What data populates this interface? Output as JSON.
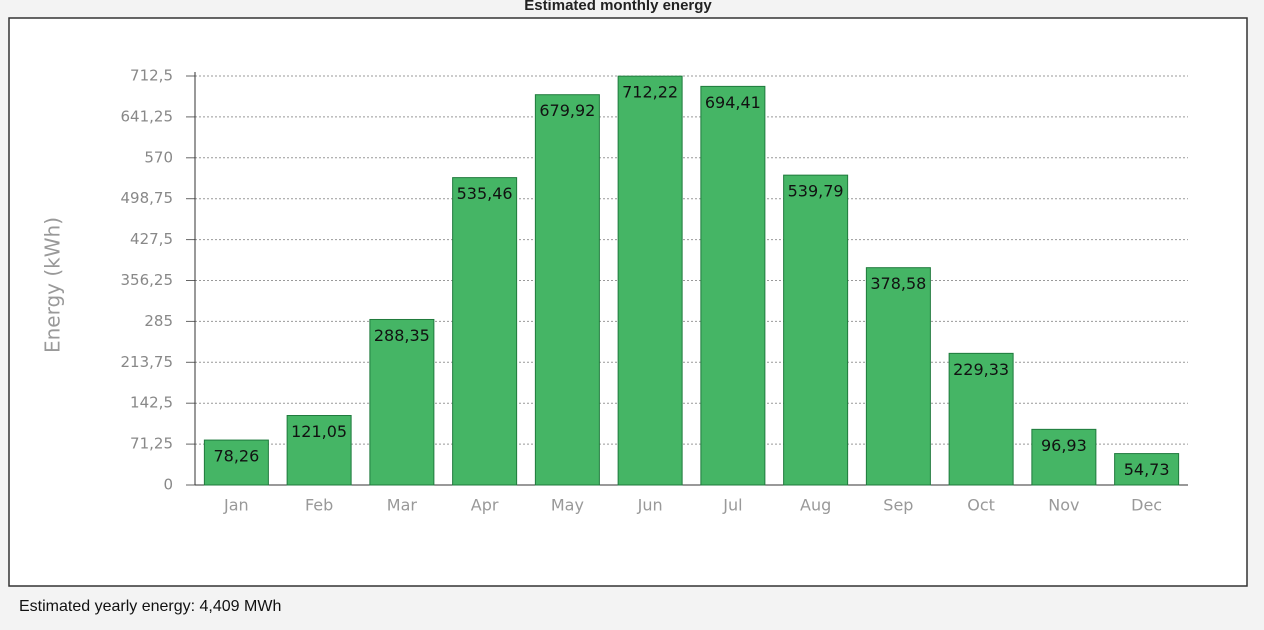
{
  "chart_data": {
    "type": "bar",
    "title": "Estimated monthly energy",
    "y_label": "Energy (kWh)",
    "categories": [
      "Jan",
      "Feb",
      "Mar",
      "Apr",
      "May",
      "Jun",
      "Jul",
      "Aug",
      "Sep",
      "Oct",
      "Nov",
      "Dec"
    ],
    "values": [
      78.26,
      121.05,
      288.35,
      535.46,
      679.92,
      712.22,
      694.41,
      539.79,
      378.58,
      229.33,
      96.93,
      54.73
    ],
    "value_labels": [
      "78,26",
      "121,05",
      "288,35",
      "535,46",
      "679,92",
      "712,22",
      "694,41",
      "539,79",
      "378,58",
      "229,33",
      "96,93",
      "54,73"
    ],
    "color": "#45b565",
    "ylim": [
      0,
      712.5
    ],
    "yticks": [
      0,
      {
        "value": 71.25,
        "label": "71,25"
      },
      {
        "value": 142.5,
        "label": "142,5"
      },
      {
        "value": 213.75,
        "label": "213,75"
      },
      285,
      {
        "value": 356.25,
        "label": "356,25"
      },
      {
        "value": 427.5,
        "label": "427,5"
      },
      {
        "value": 498.75,
        "label": "498,75"
      },
      570,
      {
        "value": 641.25,
        "label": "641,25"
      },
      {
        "value": 712.5,
        "label": "712,5"
      }
    ],
    "grid": true
  },
  "footer": "Estimated yearly energy: 4,409 MWh"
}
